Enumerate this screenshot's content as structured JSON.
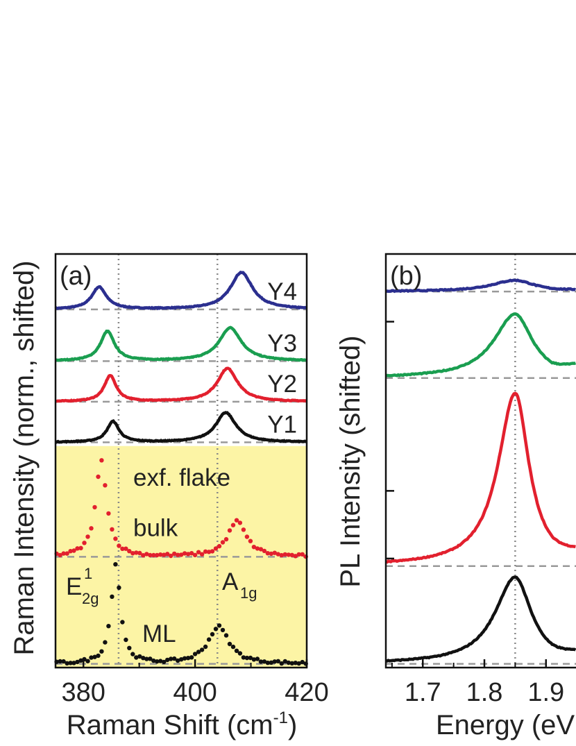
{
  "chart_data": [
    {
      "panel": "(a)",
      "type": "line",
      "xlabel": "Raman Shift (cm",
      "xlabel_sup": "-1",
      "xlabel_close": ")",
      "ylabel": "Raman Intensity (norm., shifted)",
      "xlim": [
        375,
        420
      ],
      "xticks": [
        380,
        400,
        420
      ],
      "highlight": {
        "x_from": 375,
        "x_to": 420,
        "y_from": 0,
        "y_to": 3.0,
        "color": "#fcf4a5"
      },
      "vlines": [
        386.3,
        404.0
      ],
      "ylim": [
        0,
        5.6
      ],
      "series": [
        {
          "name": "Y4",
          "color": "#2b2f8f",
          "style": "line",
          "offset": 4.85,
          "peak1_x": 382.8,
          "peak1_h": 0.3,
          "peak1_w": 1.6,
          "peak2_x": 408.3,
          "peak2_h": 0.5,
          "peak2_w": 2.4
        },
        {
          "name": "Y3",
          "color": "#1a9e50",
          "style": "line",
          "offset": 4.15,
          "peak1_x": 384.3,
          "peak1_h": 0.4,
          "peak1_w": 1.5,
          "peak2_x": 406.3,
          "peak2_h": 0.45,
          "peak2_w": 2.4
        },
        {
          "name": "Y2",
          "color": "#e2202e",
          "style": "line",
          "offset": 3.6,
          "peak1_x": 384.8,
          "peak1_h": 0.35,
          "peak1_w": 1.3,
          "peak2_x": 405.8,
          "peak2_h": 0.45,
          "peak2_w": 2.2
        },
        {
          "name": "Y1",
          "color": "#111111",
          "style": "line",
          "offset": 3.05,
          "peak1_x": 385.3,
          "peak1_h": 0.28,
          "peak1_w": 1.3,
          "peak2_x": 405.5,
          "peak2_h": 0.4,
          "peak2_w": 2.2
        },
        {
          "name": "bulk",
          "color": "#e2202e",
          "style": "dots",
          "offset": 1.5,
          "peak1_x": 383.2,
          "peak1_h": 1.3,
          "peak1_w": 1.2,
          "peak2_x": 407.5,
          "peak2_h": 0.48,
          "peak2_w": 2.0
        },
        {
          "name": "ML",
          "color": "#111111",
          "style": "dots",
          "offset": 0.05,
          "peak1_x": 385.8,
          "peak1_h": 1.35,
          "peak1_w": 1.0,
          "peak2_x": 404.2,
          "peak2_h": 0.5,
          "peak2_w": 2.3
        }
      ],
      "annotations": {
        "exf_flake": "exf. flake",
        "e2g": "E",
        "e2g_sup": "1",
        "e2g_sub": "2g",
        "a1g": "A",
        "a1g_sub": "1g"
      }
    },
    {
      "panel": "(b)",
      "type": "line",
      "xlabel": "Energy (eV",
      "ylabel": "PL Intensity (shifted)",
      "xlim": [
        1.64,
        1.96
      ],
      "xticks": [
        1.7,
        1.8,
        1.9
      ],
      "vlines": [
        1.85
      ],
      "ylim": [
        0,
        5.5
      ],
      "series": [
        {
          "color": "#2b2f8f",
          "offset": 5.0,
          "peak_x": 1.85,
          "peak_h": 0.15,
          "peak_w": 0.045,
          "tail": 0.05
        },
        {
          "color": "#1a9e50",
          "offset": 3.85,
          "peak_x": 1.85,
          "peak_h": 0.85,
          "peak_w": 0.04,
          "tail": 0.55
        },
        {
          "color": "#e2202e",
          "offset": 1.35,
          "peak_x": 1.85,
          "peak_h": 2.3,
          "peak_w": 0.032,
          "tail": 0.5
        },
        {
          "color": "#111111",
          "offset": 0.05,
          "peak_x": 1.85,
          "peak_h": 1.15,
          "peak_w": 0.038,
          "tail": 0.4
        }
      ]
    }
  ]
}
